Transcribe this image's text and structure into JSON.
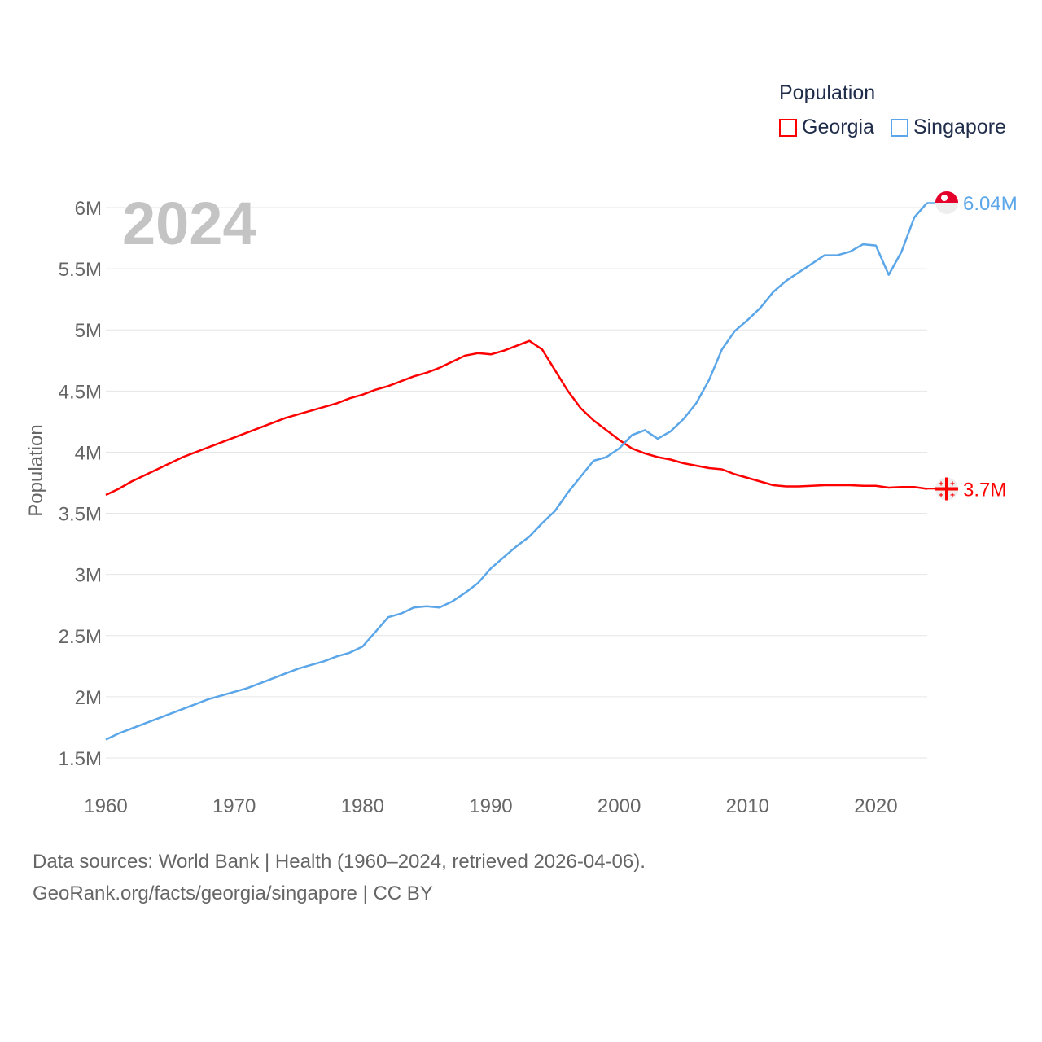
{
  "chart_data": {
    "type": "line",
    "title": "Population",
    "watermark_year": "2024",
    "xlabel": "",
    "ylabel": "Population",
    "xlim": [
      1960,
      2024
    ],
    "ylim": [
      1.5,
      6.0
    ],
    "x_ticks": [
      "1960",
      "1970",
      "1980",
      "1990",
      "2000",
      "2010",
      "2020"
    ],
    "y_ticks": [
      {
        "value": 6.0,
        "label": "6M"
      },
      {
        "value": 5.5,
        "label": "5.5M"
      },
      {
        "value": 5.0,
        "label": "5M"
      },
      {
        "value": 4.5,
        "label": "4.5M"
      },
      {
        "value": 4.0,
        "label": "4M"
      },
      {
        "value": 3.5,
        "label": "3.5M"
      },
      {
        "value": 3.0,
        "label": "3M"
      },
      {
        "value": 2.5,
        "label": "2.5M"
      },
      {
        "value": 2.0,
        "label": "2M"
      },
      {
        "value": 1.5,
        "label": "1.5M"
      }
    ],
    "grid": true,
    "legend_position": "top-right",
    "unit": "millions",
    "x_start": 1960,
    "series": [
      {
        "name": "Georgia",
        "color": "#ff0000",
        "end_label": "3.7M",
        "flag": "georgia-flag",
        "values": [
          3.65,
          3.7,
          3.76,
          3.81,
          3.86,
          3.91,
          3.96,
          4.0,
          4.04,
          4.08,
          4.12,
          4.16,
          4.2,
          4.24,
          4.28,
          4.31,
          4.34,
          4.37,
          4.4,
          4.44,
          4.47,
          4.51,
          4.54,
          4.58,
          4.62,
          4.65,
          4.69,
          4.74,
          4.79,
          4.81,
          4.8,
          4.83,
          4.87,
          4.91,
          4.84,
          4.67,
          4.5,
          4.36,
          4.26,
          4.18,
          4.1,
          4.03,
          3.99,
          3.96,
          3.94,
          3.91,
          3.89,
          3.87,
          3.86,
          3.82,
          3.79,
          3.76,
          3.73,
          3.72,
          3.72,
          3.725,
          3.73,
          3.73,
          3.73,
          3.725,
          3.725,
          3.71,
          3.715,
          3.715,
          3.7
        ]
      },
      {
        "name": "Singapore",
        "color": "#5aa6e8",
        "end_label": "6.04M",
        "flag": "singapore-flag",
        "values": [
          1.65,
          1.7,
          1.74,
          1.78,
          1.82,
          1.86,
          1.9,
          1.94,
          1.98,
          2.01,
          2.04,
          2.07,
          2.11,
          2.15,
          2.19,
          2.23,
          2.26,
          2.29,
          2.33,
          2.36,
          2.41,
          2.53,
          2.65,
          2.68,
          2.73,
          2.74,
          2.73,
          2.78,
          2.85,
          2.93,
          3.05,
          3.14,
          3.23,
          3.31,
          3.42,
          3.52,
          3.67,
          3.8,
          3.93,
          3.96,
          4.03,
          4.14,
          4.18,
          4.11,
          4.17,
          4.27,
          4.4,
          4.59,
          4.84,
          4.99,
          5.08,
          5.18,
          5.31,
          5.4,
          5.47,
          5.54,
          5.61,
          5.61,
          5.64,
          5.7,
          5.69,
          5.45,
          5.64,
          5.92,
          6.04
        ]
      }
    ]
  },
  "footer": {
    "line1": "Data sources: World Bank | Health (1960–2024, retrieved 2026-04-06).",
    "line2": "GeoRank.org/facts/georgia/singapore | CC BY"
  }
}
